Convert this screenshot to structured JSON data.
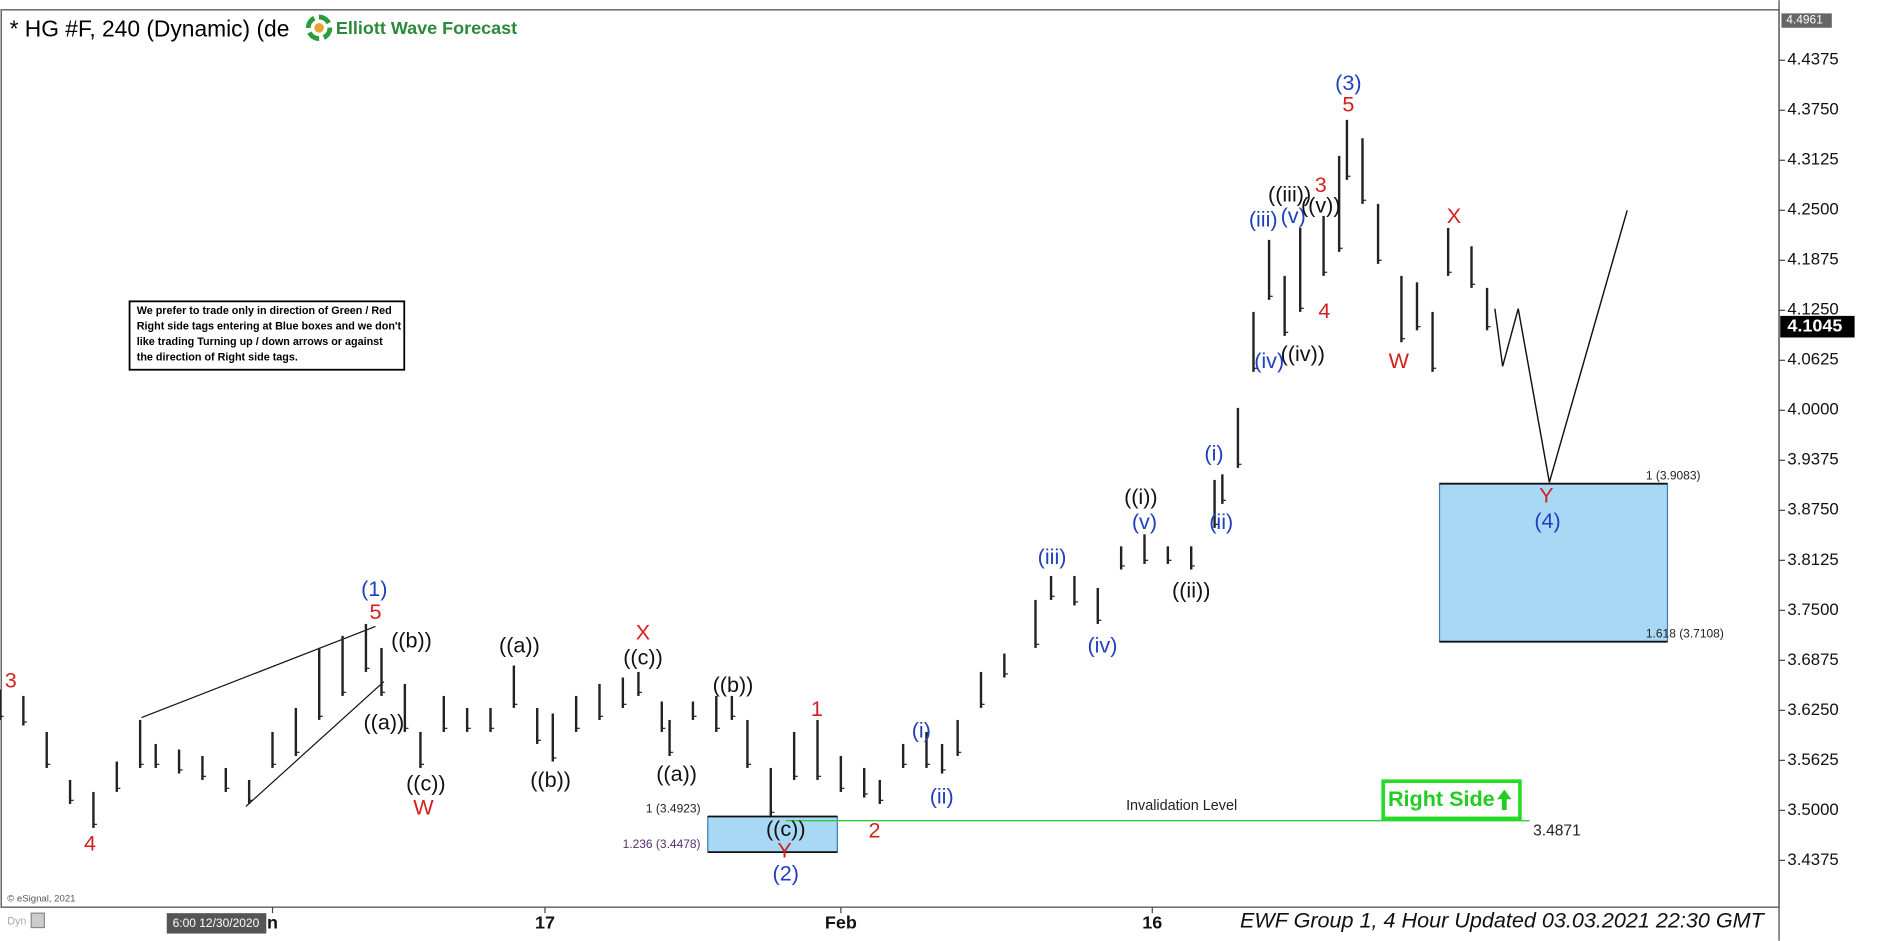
{
  "chart_data": {
    "type": "ohlc",
    "title": "* HG #F, 240 (Dynamic) (de",
    "logo_text": "Elliott Wave Forecast",
    "notice": [
      "We prefer to trade only in direction of Green / Red",
      "Right side tags entering at Blue boxes and we don't",
      "like trading Turning up / down arrows or against",
      "the direction of Right side tags."
    ],
    "x": [
      0,
      3,
      6,
      9,
      12,
      15,
      18,
      20,
      23,
      26,
      29,
      32,
      35,
      38,
      41,
      44,
      47,
      49,
      52,
      54,
      57,
      60,
      63,
      66,
      69,
      71,
      74,
      77,
      80,
      82,
      85,
      86,
      89,
      92,
      94,
      96,
      99,
      102,
      105,
      108,
      111,
      113,
      116,
      119,
      121,
      123,
      126,
      129,
      133,
      135,
      138,
      141,
      144,
      147,
      150,
      153,
      156,
      157,
      159,
      161,
      163,
      165,
      167,
      170,
      172,
      173,
      175,
      177,
      180,
      182,
      184,
      186,
      189,
      191
    ],
    "high": [
      3.651,
      3.643,
      3.598,
      3.538,
      3.523,
      3.561,
      3.613,
      3.583,
      3.576,
      3.568,
      3.553,
      3.538,
      3.598,
      3.628,
      3.703,
      3.718,
      3.733,
      3.703,
      3.658,
      3.598,
      3.643,
      3.628,
      3.628,
      3.681,
      3.628,
      3.621,
      3.643,
      3.658,
      3.666,
      3.673,
      3.636,
      3.613,
      3.636,
      3.643,
      3.643,
      3.613,
      3.553,
      3.598,
      3.613,
      3.568,
      3.553,
      3.538,
      3.583,
      3.598,
      3.583,
      3.613,
      3.673,
      3.696,
      3.763,
      3.793,
      3.793,
      3.778,
      3.83,
      3.845,
      3.83,
      3.83,
      3.913,
      3.92,
      4.003,
      4.123,
      4.213,
      4.168,
      4.228,
      4.243,
      4.318,
      4.363,
      4.34,
      4.258,
      4.168,
      4.16,
      4.123,
      4.228,
      4.205,
      4.153
    ],
    "low": [
      3.613,
      3.606,
      3.553,
      3.508,
      3.478,
      3.523,
      3.553,
      3.553,
      3.546,
      3.538,
      3.523,
      3.508,
      3.553,
      3.568,
      3.613,
      3.643,
      3.673,
      3.643,
      3.598,
      3.553,
      3.598,
      3.598,
      3.598,
      3.628,
      3.583,
      3.561,
      3.598,
      3.613,
      3.628,
      3.643,
      3.598,
      3.568,
      3.613,
      3.598,
      3.613,
      3.553,
      3.493,
      3.538,
      3.538,
      3.523,
      3.516,
      3.508,
      3.553,
      3.553,
      3.546,
      3.568,
      3.628,
      3.666,
      3.703,
      3.763,
      3.756,
      3.733,
      3.801,
      3.808,
      3.808,
      3.801,
      3.853,
      3.883,
      3.928,
      4.048,
      4.138,
      4.093,
      4.123,
      4.168,
      4.198,
      4.288,
      4.258,
      4.183,
      4.085,
      4.1,
      4.048,
      4.168,
      4.153,
      4.1
    ],
    "color": "#222222",
    "xlim": [
      0,
      228.5
    ],
    "xticks": [
      {
        "value": 35,
        "label": "n"
      },
      {
        "value": 70,
        "label": "17"
      },
      {
        "value": 108,
        "label": "Feb"
      },
      {
        "value": 148,
        "label": "16"
      }
    ],
    "ylim": [
      3.379,
      4.5005
    ],
    "yticks": [
      4.4375,
      {
        "value": 4.375,
        "label": "4.3750"
      },
      4.3125,
      {
        "value": 4.25,
        "label": "4.2500"
      },
      4.1875,
      {
        "value": 4.125,
        "label": "4.1250"
      },
      4.0625,
      {
        "value": 4,
        "label": "4.0000"
      },
      3.9375,
      {
        "value": 3.875,
        "label": "3.8750"
      },
      3.8125,
      {
        "value": 3.75,
        "label": "3.7500"
      },
      3.6875,
      {
        "value": 3.625,
        "label": "3.6250"
      },
      3.5625,
      {
        "value": 3.5,
        "label": "3.5000"
      },
      3.4375
    ],
    "high_price": 4.4961,
    "last_price": 4.1045,
    "projection": {
      "x": [
        192,
        193,
        195,
        199,
        209
      ],
      "values": [
        4.127,
        4.055,
        4.127,
        3.91,
        4.25
      ]
    },
    "zones": [
      {
        "top": 3.4923,
        "bottom": 3.4478,
        "top_label": "1 (3.4923)",
        "bottom_label": "1.236 (3.4478)",
        "color": "#a9d8f5"
      },
      {
        "top": 3.9083,
        "bottom": 3.7108,
        "top_label": "1 (3.9083)",
        "bottom_label": "1.618 (3.7108)",
        "color": "#a9d8f5"
      }
    ],
    "invalidation": {
      "label": "Invalidation Level",
      "value": 3.4871,
      "color": "#33cc33"
    },
    "right_side": "Right Side",
    "annotations": [
      {
        "text": "3",
        "color": "#d42020"
      },
      {
        "text": "4",
        "color": "#d42020"
      },
      {
        "text": "(1)",
        "color": "#1f3fbf"
      },
      {
        "text": "5",
        "color": "#d42020"
      },
      {
        "text": "((b))",
        "color": "#111111"
      },
      {
        "text": "((a))",
        "color": "#111111"
      },
      {
        "text": "((c))",
        "color": "#111111"
      },
      {
        "text": "W",
        "color": "#d42020"
      },
      {
        "text": "((a))",
        "color": "#111111"
      },
      {
        "text": "((b))",
        "color": "#111111"
      },
      {
        "text": "X",
        "color": "#d42020"
      },
      {
        "text": "((c))",
        "color": "#111111"
      },
      {
        "text": "((b))",
        "color": "#111111"
      },
      {
        "text": "((a))",
        "color": "#111111"
      },
      {
        "text": "((c))",
        "color": "#111111"
      },
      {
        "text": "Y",
        "color": "#d42020"
      },
      {
        "text": "(2)",
        "color": "#1f3fbf"
      },
      {
        "text": "1",
        "color": "#d42020"
      },
      {
        "text": "2",
        "color": "#d42020"
      },
      {
        "text": "(i)",
        "color": "#1f3fbf"
      },
      {
        "text": "(ii)",
        "color": "#1f3fbf"
      },
      {
        "text": "(iii)",
        "color": "#1f3fbf"
      },
      {
        "text": "(iv)",
        "color": "#1f3fbf"
      },
      {
        "text": "(v)",
        "color": "#1f3fbf"
      },
      {
        "text": "((i))",
        "color": "#111111"
      },
      {
        "text": "((ii))",
        "color": "#111111"
      },
      {
        "text": "(i)",
        "color": "#1f3fbf"
      },
      {
        "text": "(ii)",
        "color": "#1f3fbf"
      },
      {
        "text": "(iii)",
        "color": "#1f3fbf"
      },
      {
        "text": "(iv)",
        "color": "#1f3fbf"
      },
      {
        "text": "((iii))",
        "color": "#111111"
      },
      {
        "text": "(v)",
        "color": "#1f3fbf"
      },
      {
        "text": "((v))",
        "color": "#111111"
      },
      {
        "text": "3",
        "color": "#d42020"
      },
      {
        "text": "4",
        "color": "#d42020"
      },
      {
        "text": "((iv))",
        "color": "#111111"
      },
      {
        "text": "(3)",
        "color": "#1f3fbf"
      },
      {
        "text": "5",
        "color": "#d42020"
      },
      {
        "text": "X",
        "color": "#d42020"
      },
      {
        "text": "W",
        "color": "#d42020"
      },
      {
        "text": "Y",
        "color": "#d42020"
      },
      {
        "text": "(4)",
        "color": "#1f3fbf"
      }
    ],
    "watermark": "© eSignal, 2021",
    "cursor_time": "6:00 12/30/2020",
    "dyn": "Dyn",
    "footer": "EWF Group 1, 4 Hour Updated 03.03.2021 22:30 GMT"
  }
}
